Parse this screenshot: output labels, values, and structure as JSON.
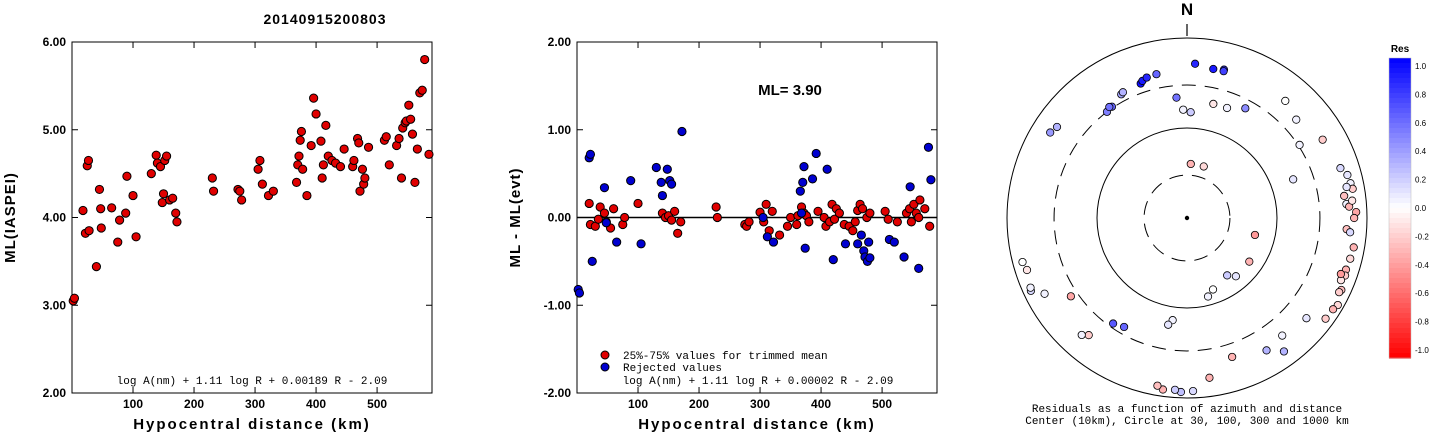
{
  "figure_title": "20140915200803",
  "chart_data": [
    {
      "type": "scatter",
      "xlabel": "Hypocentral distance (km)",
      "ylabel": "ML(IASPEI)",
      "xlim": [
        0,
        590
      ],
      "ylim": [
        2.0,
        6.0
      ],
      "xticks": [
        100,
        200,
        300,
        400,
        500
      ],
      "xtick_labels": [
        "100",
        "200",
        "300",
        "400",
        "500"
      ],
      "yticks": [
        2.0,
        3.0,
        4.0,
        5.0,
        6.0
      ],
      "ytick_labels": [
        "2.00",
        "3.00",
        "4.00",
        "5.00",
        "6.00"
      ],
      "formula": "log A(nm) + 1.11 log R + 0.00189 R - 2.09",
      "colors": {
        "marker": "#e00000"
      },
      "series": [
        {
          "x": [
            2,
            4,
            18,
            22,
            25,
            27,
            28,
            40,
            45,
            47,
            48,
            65,
            75,
            78,
            88,
            90,
            100,
            105,
            130,
            138,
            140,
            145,
            148,
            150,
            152,
            155,
            160,
            165,
            170,
            172,
            230,
            232,
            272,
            275,
            278,
            305,
            308,
            312,
            322,
            330,
            368,
            370,
            372,
            374,
            376,
            378,
            385,
            392,
            396,
            400,
            408,
            410,
            412,
            416,
            420,
            426,
            432,
            440,
            446,
            460,
            462,
            468,
            470,
            472,
            476,
            478,
            480,
            486,
            512,
            515,
            520,
            532,
            536,
            540,
            542,
            546,
            548,
            552,
            555,
            558,
            562,
            566,
            570,
            574,
            578,
            585
          ],
          "y": [
            3.05,
            3.08,
            4.08,
            3.82,
            4.59,
            4.65,
            3.85,
            3.44,
            4.32,
            4.1,
            3.88,
            4.11,
            3.72,
            3.97,
            4.05,
            4.47,
            4.25,
            3.78,
            4.5,
            4.71,
            4.62,
            4.58,
            4.17,
            4.27,
            4.65,
            4.7,
            4.2,
            4.22,
            4.05,
            3.95,
            4.45,
            4.3,
            4.32,
            4.3,
            4.2,
            4.55,
            4.65,
            4.38,
            4.25,
            4.3,
            4.4,
            4.6,
            4.7,
            4.88,
            4.98,
            4.55,
            4.25,
            4.82,
            5.36,
            5.18,
            4.87,
            4.45,
            4.6,
            5.05,
            4.7,
            4.65,
            4.62,
            4.58,
            4.78,
            4.58,
            4.65,
            4.9,
            4.85,
            4.3,
            4.55,
            4.38,
            4.45,
            4.8,
            4.88,
            4.92,
            4.6,
            4.82,
            4.9,
            4.45,
            5.02,
            5.08,
            5.1,
            5.28,
            5.12,
            4.95,
            4.4,
            4.78,
            5.42,
            5.45,
            5.8,
            4.72
          ]
        }
      ]
    },
    {
      "type": "scatter",
      "xlabel": "Hypocentral distance (km)",
      "ylabel": "ML - ML(evt)",
      "xlim": [
        0,
        590
      ],
      "ylim": [
        -2.0,
        2.0
      ],
      "xticks": [
        100,
        200,
        300,
        400,
        500
      ],
      "xtick_labels": [
        "100",
        "200",
        "300",
        "400",
        "500"
      ],
      "yticks": [
        -2.0,
        -1.0,
        0.0,
        1.0,
        2.0
      ],
      "ytick_labels": [
        "-2.00",
        "-1.00",
        "0.00",
        "1.00",
        "2.00"
      ],
      "annotation": "ML=  3.90",
      "formula": "log A(nm) + 1.11 log R + 0.00002 R - 2.09",
      "legend": [
        {
          "label": "25%-75% values for trimmed mean",
          "color": "#e00000"
        },
        {
          "label": "Rejected values",
          "color": "#0000d0"
        }
      ],
      "reference_line_y": 0.0,
      "series": [
        {
          "name": "25%-75% values for trimmed mean",
          "color": "#e00000",
          "x": [
            20,
            22,
            30,
            35,
            38,
            45,
            48,
            55,
            60,
            75,
            78,
            100,
            140,
            145,
            150,
            155,
            160,
            165,
            170,
            228,
            230,
            275,
            278,
            282,
            300,
            306,
            310,
            315,
            320,
            332,
            345,
            350,
            360,
            362,
            368,
            372,
            376,
            380,
            395,
            405,
            408,
            414,
            418,
            422,
            425,
            430,
            438,
            446,
            452,
            456,
            460,
            464,
            468,
            475,
            480,
            505,
            510,
            525,
            540,
            545,
            548,
            552,
            556,
            560,
            562,
            570,
            578
          ],
          "y": [
            0.16,
            -0.08,
            -0.1,
            -0.02,
            0.12,
            0.05,
            -0.05,
            -0.12,
            0.1,
            -0.08,
            0.0,
            0.16,
            0.05,
            0.0,
            0.02,
            -0.03,
            0.07,
            -0.18,
            -0.05,
            0.12,
            0.0,
            -0.08,
            -0.1,
            -0.05,
            0.06,
            -0.05,
            0.15,
            -0.15,
            0.07,
            -0.2,
            -0.1,
            0.0,
            -0.08,
            0.02,
            0.12,
            0.05,
            0.02,
            -0.05,
            0.07,
            0.0,
            -0.1,
            -0.05,
            0.15,
            -0.02,
            0.1,
            0.05,
            -0.08,
            -0.1,
            -0.15,
            -0.05,
            0.08,
            0.15,
            0.1,
            0.0,
            0.05,
            0.07,
            -0.02,
            -0.05,
            0.05,
            0.1,
            -0.05,
            0.15,
            0.05,
            0.0,
            0.2,
            0.1,
            -0.1
          ]
        },
        {
          "name": "Rejected values",
          "color": "#0000d0",
          "x": [
            2,
            4,
            20,
            22,
            25,
            45,
            48,
            65,
            88,
            105,
            130,
            138,
            140,
            148,
            152,
            155,
            172,
            305,
            312,
            322,
            366,
            368,
            370,
            372,
            374,
            386,
            392,
            410,
            420,
            440,
            460,
            466,
            470,
            472,
            476,
            478,
            480,
            512,
            520,
            536,
            546,
            560,
            576,
            580
          ],
          "y": [
            -0.82,
            -0.86,
            0.68,
            0.72,
            -0.5,
            0.34,
            -0.06,
            -0.28,
            0.42,
            -0.3,
            0.57,
            0.4,
            0.25,
            0.55,
            0.42,
            0.38,
            0.98,
            0.0,
            -0.22,
            -0.28,
            0.3,
            0.05,
            0.4,
            0.58,
            -0.35,
            0.44,
            0.73,
            0.55,
            -0.48,
            -0.3,
            -0.3,
            -0.2,
            -0.38,
            -0.45,
            -0.5,
            -0.28,
            -0.46,
            -0.25,
            -0.28,
            -0.45,
            0.35,
            -0.58,
            0.8,
            0.43
          ]
        }
      ]
    },
    {
      "type": "scatter",
      "title": "N",
      "caption_line1": "Residuals as a function of azimuth and distance",
      "caption_line2": "Center (10km), Circle at 30, 100, 300 and 1000 km",
      "colorbar_label": "Res",
      "colorbar_range": [
        -1.0,
        1.0
      ],
      "colorbar_ticks": [
        "1.0",
        "0.8",
        "0.6",
        "0.4",
        "0.2",
        "0.0",
        "-0.2",
        "-0.4",
        "-0.6",
        "-0.8",
        "-1.0"
      ],
      "colors": {
        "positive": "#0000ff",
        "negative": "#ff0000",
        "zero": "#ffffff"
      },
      "event_point": {
        "azimuth_deg": 0,
        "distance_km": 10
      },
      "points": {
        "azimuth_deg": [
          3,
          10,
          14,
          14,
          -28,
          -27,
          -19,
          -18,
          -16,
          -12,
          -5,
          13,
          20,
          28,
          -58,
          -55,
          -37,
          -34,
          -35,
          -2,
          2,
          4,
          18,
          40,
          48,
          57,
          60,
          70,
          72,
          75,
          78,
          80,
          79,
          82,
          85,
          86,
          84,
          88,
          90,
          94,
          95,
          100,
          104,
          108,
          110,
          112,
          110,
          115,
          116,
          120,
          122,
          126,
          130,
          141,
          144,
          149,
          162,
          172,
          178,
          182,
          184,
          188,
          190,
          220,
          222,
          236,
          242,
          245,
          246,
          252,
          255,
          104,
          125,
          140,
          145,
          160,
          165,
          188,
          190,
          210,
          215
        ],
        "distance_km": [
          520,
          480,
          500,
          480,
          360,
          370,
          380,
          400,
          420,
          430,
          220,
          200,
          200,
          240,
          620,
          580,
          300,
          310,
          320,
          160,
          150,
          40,
          40,
          500,
          430,
          310,
          550,
          180,
          620,
          700,
          720,
          740,
          640,
          580,
          600,
          640,
          700,
          760,
          720,
          600,
          660,
          760,
          740,
          720,
          740,
          700,
          660,
          780,
          760,
          860,
          820,
          800,
          540,
          480,
          680,
          520,
          420,
          620,
          840,
          860,
          820,
          840,
          780,
          500,
          560,
          360,
          620,
          820,
          800,
          740,
          780,
          60,
          70,
          70,
          60,
          70,
          80,
          140,
          160,
          250,
          270
        ],
        "res": [
          0.85,
          0.9,
          0.8,
          0.75,
          0.35,
          0.3,
          0.95,
          0.9,
          0.85,
          0.6,
          0.55,
          -0.1,
          0.05,
          0.45,
          0.4,
          0.3,
          0.5,
          0.6,
          0.55,
          0.05,
          0.2,
          -0.3,
          -0.15,
          0.0,
          0.05,
          0.05,
          -0.2,
          0.1,
          0.15,
          0.1,
          0.05,
          -0.2,
          0.1,
          -0.25,
          0.05,
          -0.3,
          -0.1,
          -0.35,
          -0.3,
          -0.25,
          0.15,
          -0.3,
          -0.15,
          -0.3,
          -0.2,
          -0.1,
          -0.4,
          -0.25,
          -0.2,
          -0.15,
          -0.3,
          -0.2,
          0.1,
          0.05,
          0.3,
          0.3,
          -0.3,
          -0.3,
          0.15,
          0.25,
          0.2,
          -0.3,
          -0.25,
          -0.2,
          0.05,
          -0.35,
          0.05,
          0.15,
          0.05,
          -0.1,
          0.0,
          -0.4,
          -0.3,
          0.1,
          0.2,
          0.0,
          0.05,
          0.05,
          0.1,
          0.6,
          0.65
        ]
      }
    }
  ]
}
